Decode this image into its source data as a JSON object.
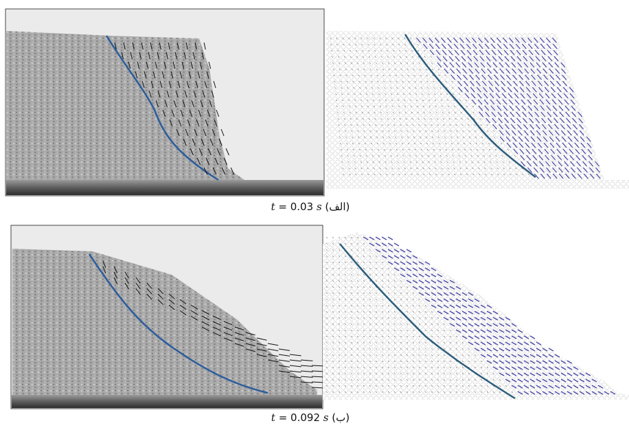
{
  "figure": {
    "panels": [
      {
        "variable": "t",
        "value": "= 0.03",
        "unit": "s",
        "label": "(الف)"
      },
      {
        "variable": "t",
        "value": "= 0.092",
        "unit": "s",
        "label": "(ب)"
      }
    ]
  }
}
